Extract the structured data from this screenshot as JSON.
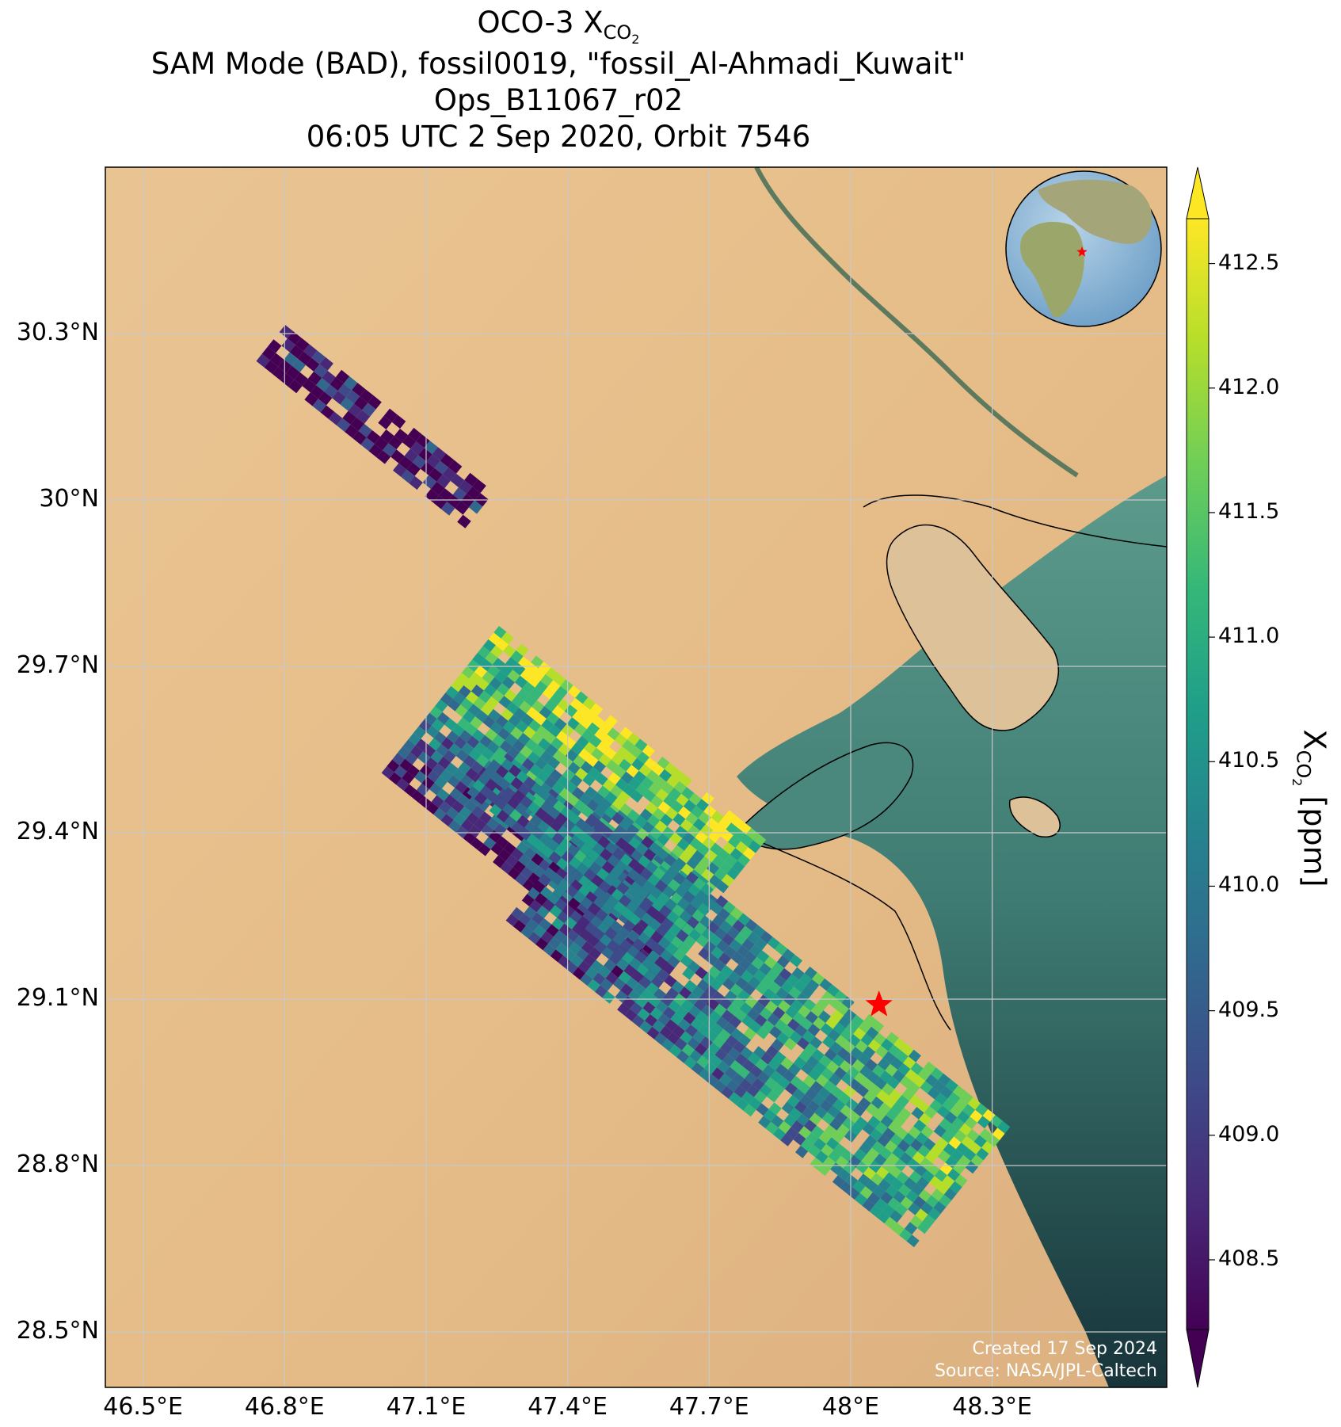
{
  "title": {
    "line1_prefix": "OCO-3 X",
    "line1_sub": "CO",
    "line1_sub2": "2",
    "line2": "SAM Mode (BAD), fossil0019, \"fossil_Al-Ahmadi_Kuwait\"",
    "line3": "Ops_B11067_r02",
    "line4": "06:05 UTC 2 Sep 2020, Orbit 7546"
  },
  "axes": {
    "lat_ticks": [
      "30.3°N",
      "30°N",
      "29.7°N",
      "29.4°N",
      "29.1°N",
      "28.8°N",
      "28.5°N"
    ],
    "lon_ticks": [
      "46.5°E",
      "46.8°E",
      "47.1°E",
      "47.4°E",
      "47.7°E",
      "48°E",
      "48.3°E"
    ],
    "lat_values": [
      30.3,
      30.0,
      29.7,
      29.4,
      29.1,
      28.8,
      28.5
    ],
    "lon_values": [
      46.5,
      46.8,
      47.1,
      47.4,
      47.7,
      48.0,
      48.3
    ],
    "lat_range": [
      28.4,
      30.6
    ],
    "lon_range": [
      46.42,
      48.67
    ],
    "grid": true
  },
  "colorbar": {
    "label_prefix": "X",
    "label_sub": "CO",
    "label_sub2": "2",
    "label_suffix": " [ppm]",
    "ticks": [
      "408.5",
      "409.0",
      "409.5",
      "410.0",
      "410.5",
      "411.0",
      "411.5",
      "412.0",
      "412.5"
    ],
    "tick_values": [
      408.5,
      409.0,
      409.5,
      410.0,
      410.5,
      411.0,
      411.5,
      412.0,
      412.5
    ],
    "range": [
      408.22,
      412.68
    ],
    "colormap": "viridis",
    "extend": "both"
  },
  "marker": {
    "name": "Al-Ahmadi",
    "lat": 29.09,
    "lon": 48.06,
    "color": "#ff0000"
  },
  "credits": {
    "created": "Created 17 Sep 2024",
    "source": "Source: NASA/JPL-Caltech"
  },
  "colors": {
    "desert": "#e8c08e",
    "sea_shallow": "#4e8a80",
    "sea_deep": "#1c3a3e",
    "viridis": [
      "#440154",
      "#482878",
      "#3e4a89",
      "#31688e",
      "#26828e",
      "#1f9e89",
      "#35b779",
      "#6ece58",
      "#b5de2b",
      "#fde725"
    ]
  }
}
